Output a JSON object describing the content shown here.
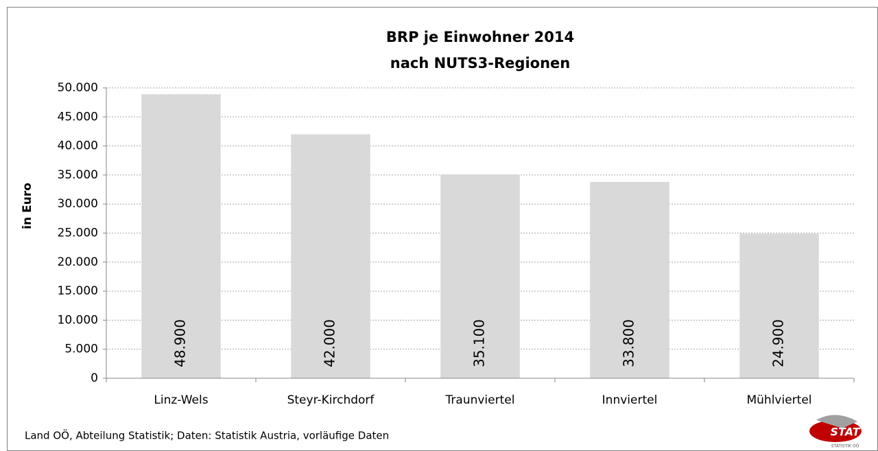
{
  "chart_data": {
    "type": "bar",
    "title": "BRP je Einwohner 2014",
    "subtitle": "nach NUTS3-Regionen",
    "ylabel": "in Euro",
    "categories": [
      "Linz-Wels",
      "Steyr-Kirchdorf",
      "Traunviertel",
      "Innviertel",
      "Mühlviertel"
    ],
    "values": [
      48900,
      42000,
      35100,
      33800,
      24900
    ],
    "value_labels": [
      "48.900",
      "42.000",
      "35.100",
      "33.800",
      "24.900"
    ],
    "color": "#d9d9d9",
    "ylim": [
      0,
      50000
    ],
    "yticks": [
      0,
      {
        "value": 5000,
        "label": "5.000"
      },
      {
        "value": 10000,
        "label": "10.000"
      },
      {
        "value": 15000,
        "label": "15.000"
      },
      {
        "value": 20000,
        "label": "20.000"
      },
      {
        "value": 25000,
        "label": "25.000"
      },
      {
        "value": 30000,
        "label": "30.000"
      },
      {
        "value": 35000,
        "label": "35.000"
      },
      {
        "value": 40000,
        "label": "40.000"
      },
      {
        "value": 45000,
        "label": "45.000"
      },
      {
        "value": 50000,
        "label": "50.000"
      }
    ],
    "grid": true,
    "source": "Land OÖ, Abteilung Statistik; Daten: Statistik Austria, vorläufige Daten"
  },
  "logo": {
    "text": "STAT",
    "subtext": "STATISTIK OÖ"
  }
}
